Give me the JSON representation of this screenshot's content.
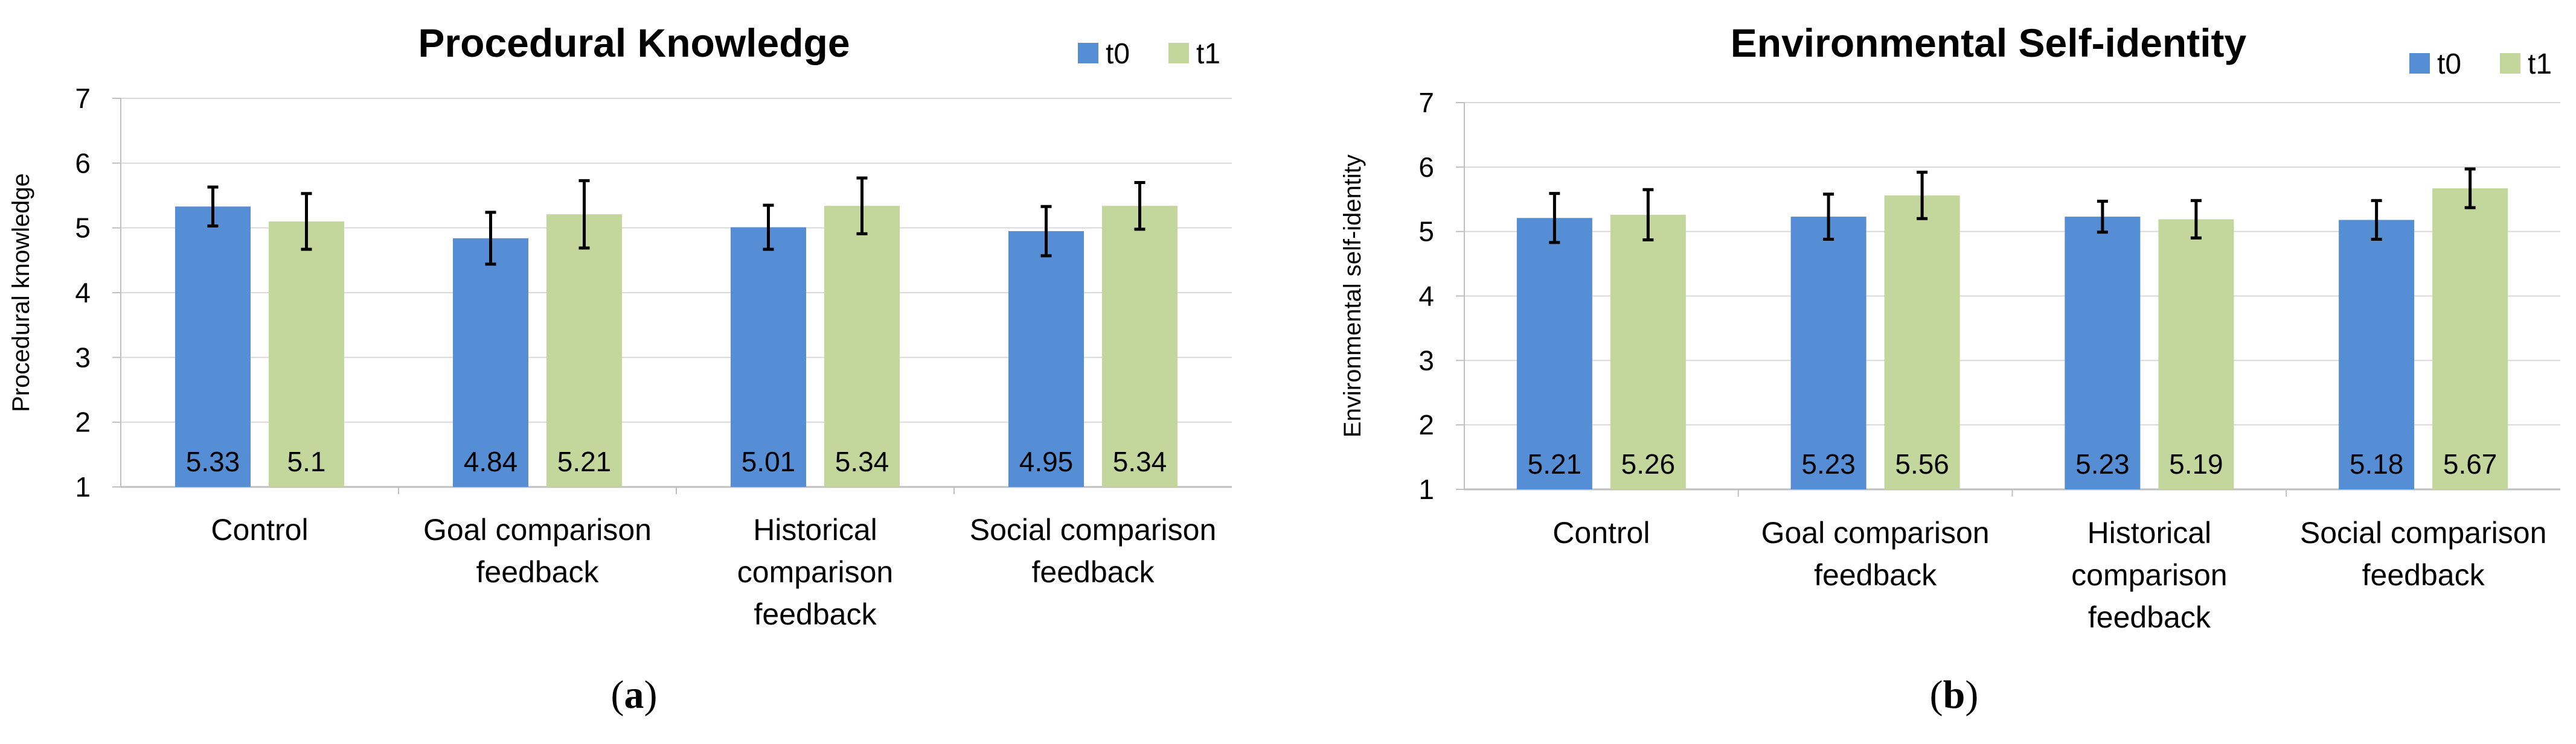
{
  "colors": {
    "t0": "#558ED5",
    "t1": "#C3D69B",
    "grid": "#D9D9D9",
    "axis": "#BFBFBF",
    "error": "#000000"
  },
  "chart_data": [
    {
      "type": "bar",
      "title": "Procedural Knowledge",
      "xlabel": "",
      "ylabel": "Procedural knowledge",
      "ylim": [
        1,
        7
      ],
      "yticks": [
        "1",
        "2",
        "3",
        "4",
        "5",
        "6",
        "7"
      ],
      "grid": true,
      "legend_position": "top-right",
      "categories": [
        [
          "Control"
        ],
        [
          "Goal comparison",
          "feedback"
        ],
        [
          "Historical",
          "comparison",
          "feedback"
        ],
        [
          "Social comparison",
          "feedback"
        ]
      ],
      "series": [
        {
          "name": "t0",
          "values": [
            5.33,
            4.84,
            5.01,
            4.95
          ],
          "labels": [
            "5.33",
            "4.84",
            "5.01",
            "4.95"
          ],
          "errors": [
            0.3,
            0.4,
            0.34,
            0.38
          ]
        },
        {
          "name": "t1",
          "values": [
            5.1,
            5.21,
            5.34,
            5.34
          ],
          "labels": [
            "5.1",
            "5.21",
            "5.34",
            "5.34"
          ],
          "errors": [
            0.43,
            0.52,
            0.43,
            0.36
          ]
        }
      ],
      "panel_label": "a"
    },
    {
      "type": "bar",
      "title": "Environmental Self-identity",
      "xlabel": "",
      "ylabel": "Environmental self-identity",
      "ylim": [
        1,
        7
      ],
      "yticks": [
        "1",
        "2",
        "3",
        "4",
        "5",
        "6",
        "7"
      ],
      "grid": true,
      "legend_position": "top-right",
      "categories": [
        [
          "Control"
        ],
        [
          "Goal comparison",
          "feedback"
        ],
        [
          "Historical",
          "comparison",
          "feedback"
        ],
        [
          "Social comparison",
          "feedback"
        ]
      ],
      "series": [
        {
          "name": "t0",
          "values": [
            5.21,
            5.23,
            5.23,
            5.18
          ],
          "labels": [
            "5.21",
            "5.23",
            "5.23",
            "5.18"
          ],
          "errors": [
            0.38,
            0.35,
            0.24,
            0.3
          ]
        },
        {
          "name": "t1",
          "values": [
            5.26,
            5.56,
            5.19,
            5.67
          ],
          "labels": [
            "5.26",
            "5.56",
            "5.19",
            "5.67"
          ],
          "errors": [
            0.39,
            0.36,
            0.29,
            0.3
          ]
        }
      ],
      "panel_label": "b"
    }
  ]
}
